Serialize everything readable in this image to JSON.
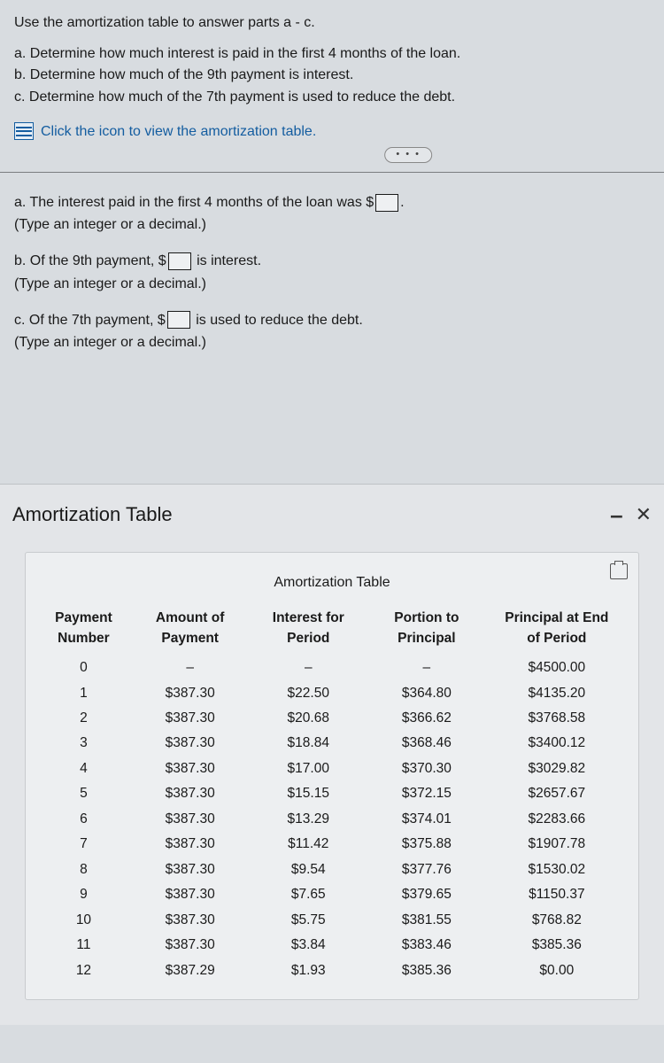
{
  "intro": "Use the amortization table to answer parts a - c.",
  "questions": {
    "a": "a. Determine how much interest is paid in the first 4 months of the loan.",
    "b": "b. Determine how much of the 9th payment is interest.",
    "c": "c. Determine how much of the 7th payment is used to reduce the debt."
  },
  "icon_link": "Click the icon to view the amortization table.",
  "answers": {
    "a_pre": "a. The interest paid in the first 4 months of the loan was $",
    "a_post": ".",
    "b_pre": "b. Of the 9th payment, $",
    "b_post": " is interest.",
    "c_pre": "c. Of the 7th payment, $",
    "c_post": " is used to reduce the debt.",
    "hint": "(Type an integer or a decimal.)"
  },
  "panel_title": "Amortization Table",
  "table": {
    "title": "Amortization Table",
    "columns": [
      "Payment Number",
      "Amount of Payment",
      "Interest for Period",
      "Portion to Principal",
      "Principal at End of Period"
    ],
    "col_widths": [
      "16%",
      "20%",
      "20%",
      "20%",
      "24%"
    ],
    "rows": [
      [
        "0",
        "–",
        "–",
        "–",
        "$4500.00"
      ],
      [
        "1",
        "$387.30",
        "$22.50",
        "$364.80",
        "$4135.20"
      ],
      [
        "2",
        "$387.30",
        "$20.68",
        "$366.62",
        "$3768.58"
      ],
      [
        "3",
        "$387.30",
        "$18.84",
        "$368.46",
        "$3400.12"
      ],
      [
        "4",
        "$387.30",
        "$17.00",
        "$370.30",
        "$3029.82"
      ],
      [
        "5",
        "$387.30",
        "$15.15",
        "$372.15",
        "$2657.67"
      ],
      [
        "6",
        "$387.30",
        "$13.29",
        "$374.01",
        "$2283.66"
      ],
      [
        "7",
        "$387.30",
        "$11.42",
        "$375.88",
        "$1907.78"
      ],
      [
        "8",
        "$387.30",
        "$9.54",
        "$377.76",
        "$1530.02"
      ],
      [
        "9",
        "$387.30",
        "$7.65",
        "$379.65",
        "$1150.37"
      ],
      [
        "10",
        "$387.30",
        "$5.75",
        "$381.55",
        "$768.82"
      ],
      [
        "11",
        "$387.30",
        "$3.84",
        "$383.46",
        "$385.36"
      ],
      [
        "12",
        "$387.29",
        "$1.93",
        "$385.36",
        "$0.00"
      ]
    ]
  },
  "colors": {
    "background": "#d8dce0",
    "link": "#145da0",
    "panel_bg": "#e3e5e8",
    "table_bg": "#edeff1",
    "border": "#c8cbce"
  }
}
